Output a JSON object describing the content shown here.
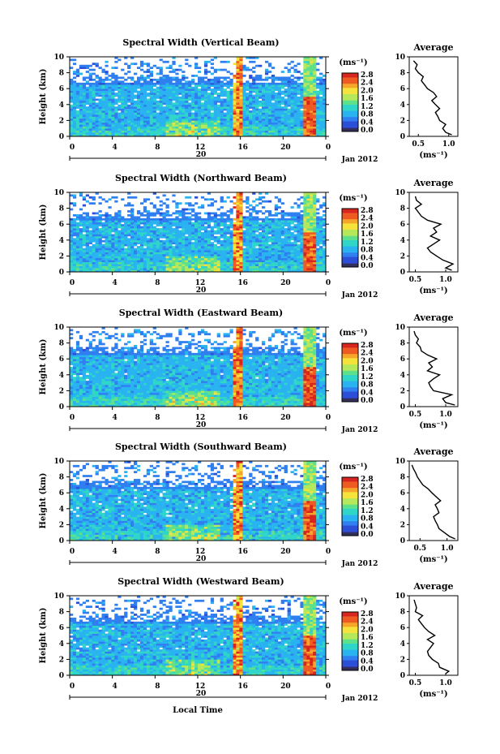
{
  "figure": {
    "xlabel": "Local Time",
    "xticks": [
      "0",
      "4",
      "8",
      "12",
      "16",
      "20",
      "0"
    ],
    "day_label": "20",
    "month_label": "Jan 2012",
    "ylabel": "Height (km)",
    "yticks": [
      "0",
      "2",
      "4",
      "6",
      "8",
      "10"
    ],
    "colorbar_unit": "(ms⁻¹)",
    "colorbar_ticks": [
      "0.0",
      "0.4",
      "0.8",
      "1.2",
      "1.6",
      "2.0",
      "2.4",
      "2.8"
    ],
    "avg_title": "Average",
    "avg_xlabel": "(ms⁻¹)",
    "colors": {
      "scale": [
        "#3a3aa8",
        "#2b4fd6",
        "#2f7ff0",
        "#29b3f0",
        "#2fd6c8",
        "#5fe08a",
        "#b5e85a",
        "#f5e23a",
        "#f5a52a",
        "#ef5a22",
        "#d8241e"
      ]
    }
  },
  "chart_data": [
    {
      "type": "heatmap",
      "title": "Spectral Width (Vertical Beam)",
      "xlabel": "Local Time",
      "ylabel": "Height (km)",
      "xlim": [
        0,
        24
      ],
      "ylim": [
        0,
        10
      ],
      "colorbar": {
        "unit": "ms⁻¹",
        "range": [
          0.0,
          2.8
        ]
      },
      "average_profile": {
        "title": "Average",
        "xlabel": "(ms⁻¹)",
        "xticks": [
          "0.5",
          "1.0"
        ],
        "xlim": [
          0.35,
          1.15
        ],
        "height": [
          0.2,
          0.5,
          1,
          1.5,
          2,
          2.5,
          3,
          3.5,
          4,
          4.5,
          5,
          5.5,
          6,
          6.5,
          7,
          7.5,
          8,
          8.5,
          9,
          9.5
        ],
        "value": [
          1.05,
          0.95,
          0.9,
          0.95,
          0.85,
          0.82,
          0.78,
          0.85,
          0.78,
          0.72,
          0.8,
          0.75,
          0.65,
          0.6,
          0.55,
          0.58,
          0.5,
          0.45,
          0.48,
          0.42
        ]
      }
    },
    {
      "type": "heatmap",
      "title": "Spectral Width (Northward Beam)",
      "xlabel": "Local Time",
      "ylabel": "Height (km)",
      "xlim": [
        0,
        24
      ],
      "ylim": [
        0,
        10
      ],
      "colorbar": {
        "unit": "ms⁻¹",
        "range": [
          0.0,
          2.8
        ]
      },
      "average_profile": {
        "title": "Average",
        "xlabel": "(ms⁻¹)",
        "xticks": [
          "0.5",
          "1.0"
        ],
        "xlim": [
          0.4,
          1.2
        ],
        "height": [
          0.2,
          0.5,
          1,
          1.5,
          2,
          2.5,
          3,
          3.5,
          4,
          4.5,
          5,
          5.5,
          6,
          6.5,
          7,
          7.5,
          8,
          8.5,
          9,
          9.5
        ],
        "value": [
          1.1,
          1.0,
          1.12,
          0.95,
          0.85,
          0.75,
          0.7,
          0.8,
          0.9,
          0.75,
          0.85,
          0.8,
          0.92,
          0.7,
          0.6,
          0.55,
          0.5,
          0.6,
          0.52,
          0.5
        ]
      }
    },
    {
      "type": "heatmap",
      "title": "Spectral Width (Eastward Beam)",
      "xlabel": "Local Time",
      "ylabel": "Height (km)",
      "xlim": [
        0,
        24
      ],
      "ylim": [
        0,
        10
      ],
      "colorbar": {
        "unit": "ms⁻¹",
        "range": [
          0.0,
          2.8
        ]
      },
      "average_profile": {
        "title": "Average",
        "xlabel": "(ms⁻¹)",
        "xticks": [
          "0.5",
          "1.0"
        ],
        "xlim": [
          0.4,
          1.2
        ],
        "height": [
          0.2,
          0.5,
          1,
          1.5,
          2,
          2.5,
          3,
          3.5,
          4,
          4.5,
          5,
          5.5,
          6,
          6.5,
          7,
          7.5,
          8,
          8.5,
          9,
          9.5
        ],
        "value": [
          1.15,
          1.0,
          0.95,
          1.1,
          0.8,
          0.75,
          0.72,
          0.8,
          0.9,
          0.7,
          0.78,
          0.72,
          0.85,
          0.7,
          0.6,
          0.58,
          0.52,
          0.55,
          0.5,
          0.48
        ]
      }
    },
    {
      "type": "heatmap",
      "title": "Spectral Width (Southward Beam)",
      "xlabel": "Local Time",
      "ylabel": "Height (km)",
      "xlim": [
        0,
        24
      ],
      "ylim": [
        0,
        10
      ],
      "colorbar": {
        "unit": "ms⁻¹",
        "range": [
          0.0,
          2.8
        ]
      },
      "average_profile": {
        "title": "Average",
        "xlabel": "(ms⁻¹)",
        "xticks": [
          "0.5",
          "1.0"
        ],
        "xlim": [
          0.3,
          1.2
        ],
        "height": [
          0.2,
          0.5,
          1,
          1.5,
          2,
          2.5,
          3,
          3.5,
          4,
          4.5,
          5,
          5.5,
          6,
          6.5,
          7,
          7.5,
          8,
          8.5,
          9,
          9.5
        ],
        "value": [
          1.15,
          1.05,
          0.95,
          0.85,
          0.82,
          0.78,
          0.75,
          0.85,
          0.82,
          0.78,
          0.88,
          0.8,
          0.72,
          0.65,
          0.55,
          0.5,
          0.45,
          0.42,
          0.38,
          0.35
        ]
      }
    },
    {
      "type": "heatmap",
      "title": "Spectral Width (Westward Beam)",
      "xlabel": "Local Time",
      "ylabel": "Height (km)",
      "xlim": [
        0,
        24
      ],
      "ylim": [
        0,
        10
      ],
      "colorbar": {
        "unit": "ms⁻¹",
        "range": [
          0.0,
          2.8
        ]
      },
      "average_profile": {
        "title": "Average",
        "xlabel": "(ms⁻¹)",
        "xticks": [
          "0.5",
          "1.0"
        ],
        "xlim": [
          0.4,
          1.2
        ],
        "height": [
          0.2,
          0.5,
          1,
          1.5,
          2,
          2.5,
          3,
          3.5,
          4,
          4.5,
          5,
          5.5,
          6,
          6.5,
          7,
          7.5,
          8,
          8.5,
          9,
          9.5
        ],
        "value": [
          1.0,
          1.05,
          0.9,
          0.88,
          0.78,
          0.72,
          0.7,
          0.75,
          0.8,
          0.7,
          0.82,
          0.72,
          0.65,
          0.6,
          0.55,
          0.62,
          0.5,
          0.52,
          0.5,
          0.48
        ]
      }
    }
  ]
}
